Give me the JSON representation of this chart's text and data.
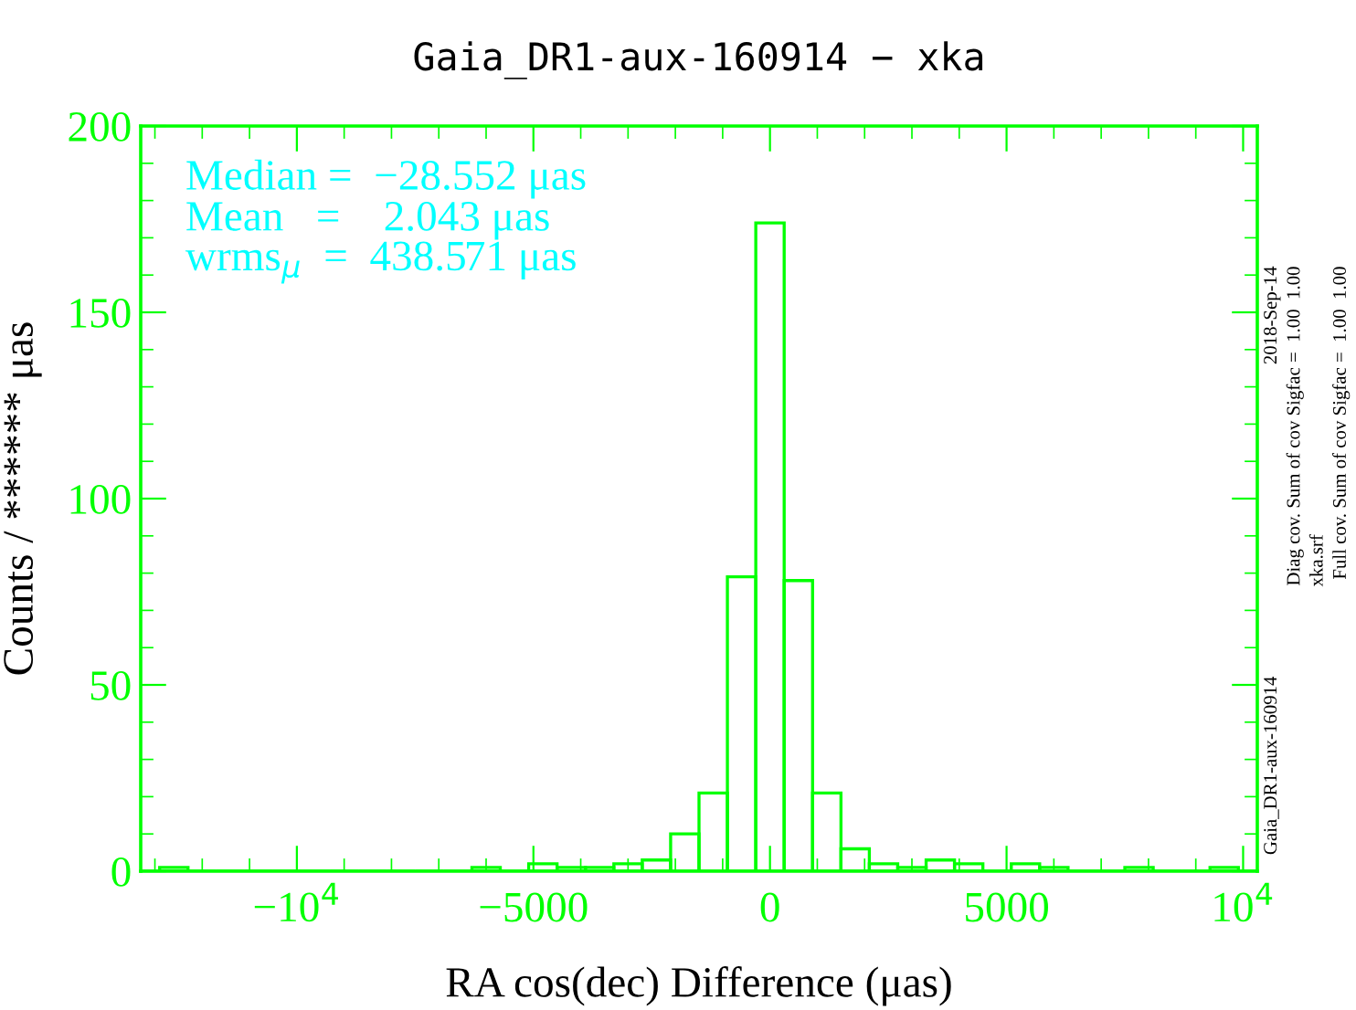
{
  "chart_data": {
    "type": "histogram",
    "title": "Gaia_DR1-aux-160914 − xka",
    "xlabel": "RA cos(dec) Difference (μas)",
    "ylabel": "Counts / ****** μas",
    "bins": [
      -13500,
      -12900,
      -12300,
      -11700,
      -11100,
      -10500,
      -9900,
      -9300,
      -8700,
      -8100,
      -7500,
      -6900,
      -6300,
      -5700,
      -5100,
      -4500,
      -3900,
      -3300,
      -2700,
      -2100,
      -1500,
      -900,
      -300,
      300,
      900,
      1500,
      2100,
      2700,
      3300,
      3900,
      4500,
      5100,
      5700,
      6300,
      6900,
      7500,
      8100,
      8700,
      9300,
      9900,
      10500
    ],
    "values": [
      0,
      1,
      0,
      0,
      0,
      0,
      0,
      0,
      0,
      0,
      0,
      0,
      1,
      0,
      2,
      1,
      1,
      2,
      3,
      10,
      21,
      79,
      174,
      78,
      21,
      6,
      2,
      1,
      3,
      2,
      0,
      2,
      1,
      0,
      0,
      1,
      0,
      0,
      1,
      0
    ],
    "color": "#00ff00",
    "xlim": [
      -13300,
      10300
    ],
    "ylim": [
      0,
      200
    ],
    "xticks": [
      {
        "value": -10000,
        "label": "−10$^{4}$"
      },
      -5000,
      0,
      5000,
      {
        "value": 10000,
        "label": "10$^{4}$"
      }
    ],
    "yticks": [
      0,
      50,
      100,
      150,
      200
    ],
    "grid": false,
    "annotations": [
      "Median =  −28.552 μas",
      "Mean   =    2.043 μas",
      "wrms$_{μ}$  =  438.571 μas",
      "Gaia_DR1-aux-160914",
      "2018-Sep-14",
      "Diag cov. Sum of cov Sigfac =  1.00  1.00",
      "xka.srf",
      "Full cov. Sum of cov Sigfac =  1.00  1.00"
    ]
  }
}
